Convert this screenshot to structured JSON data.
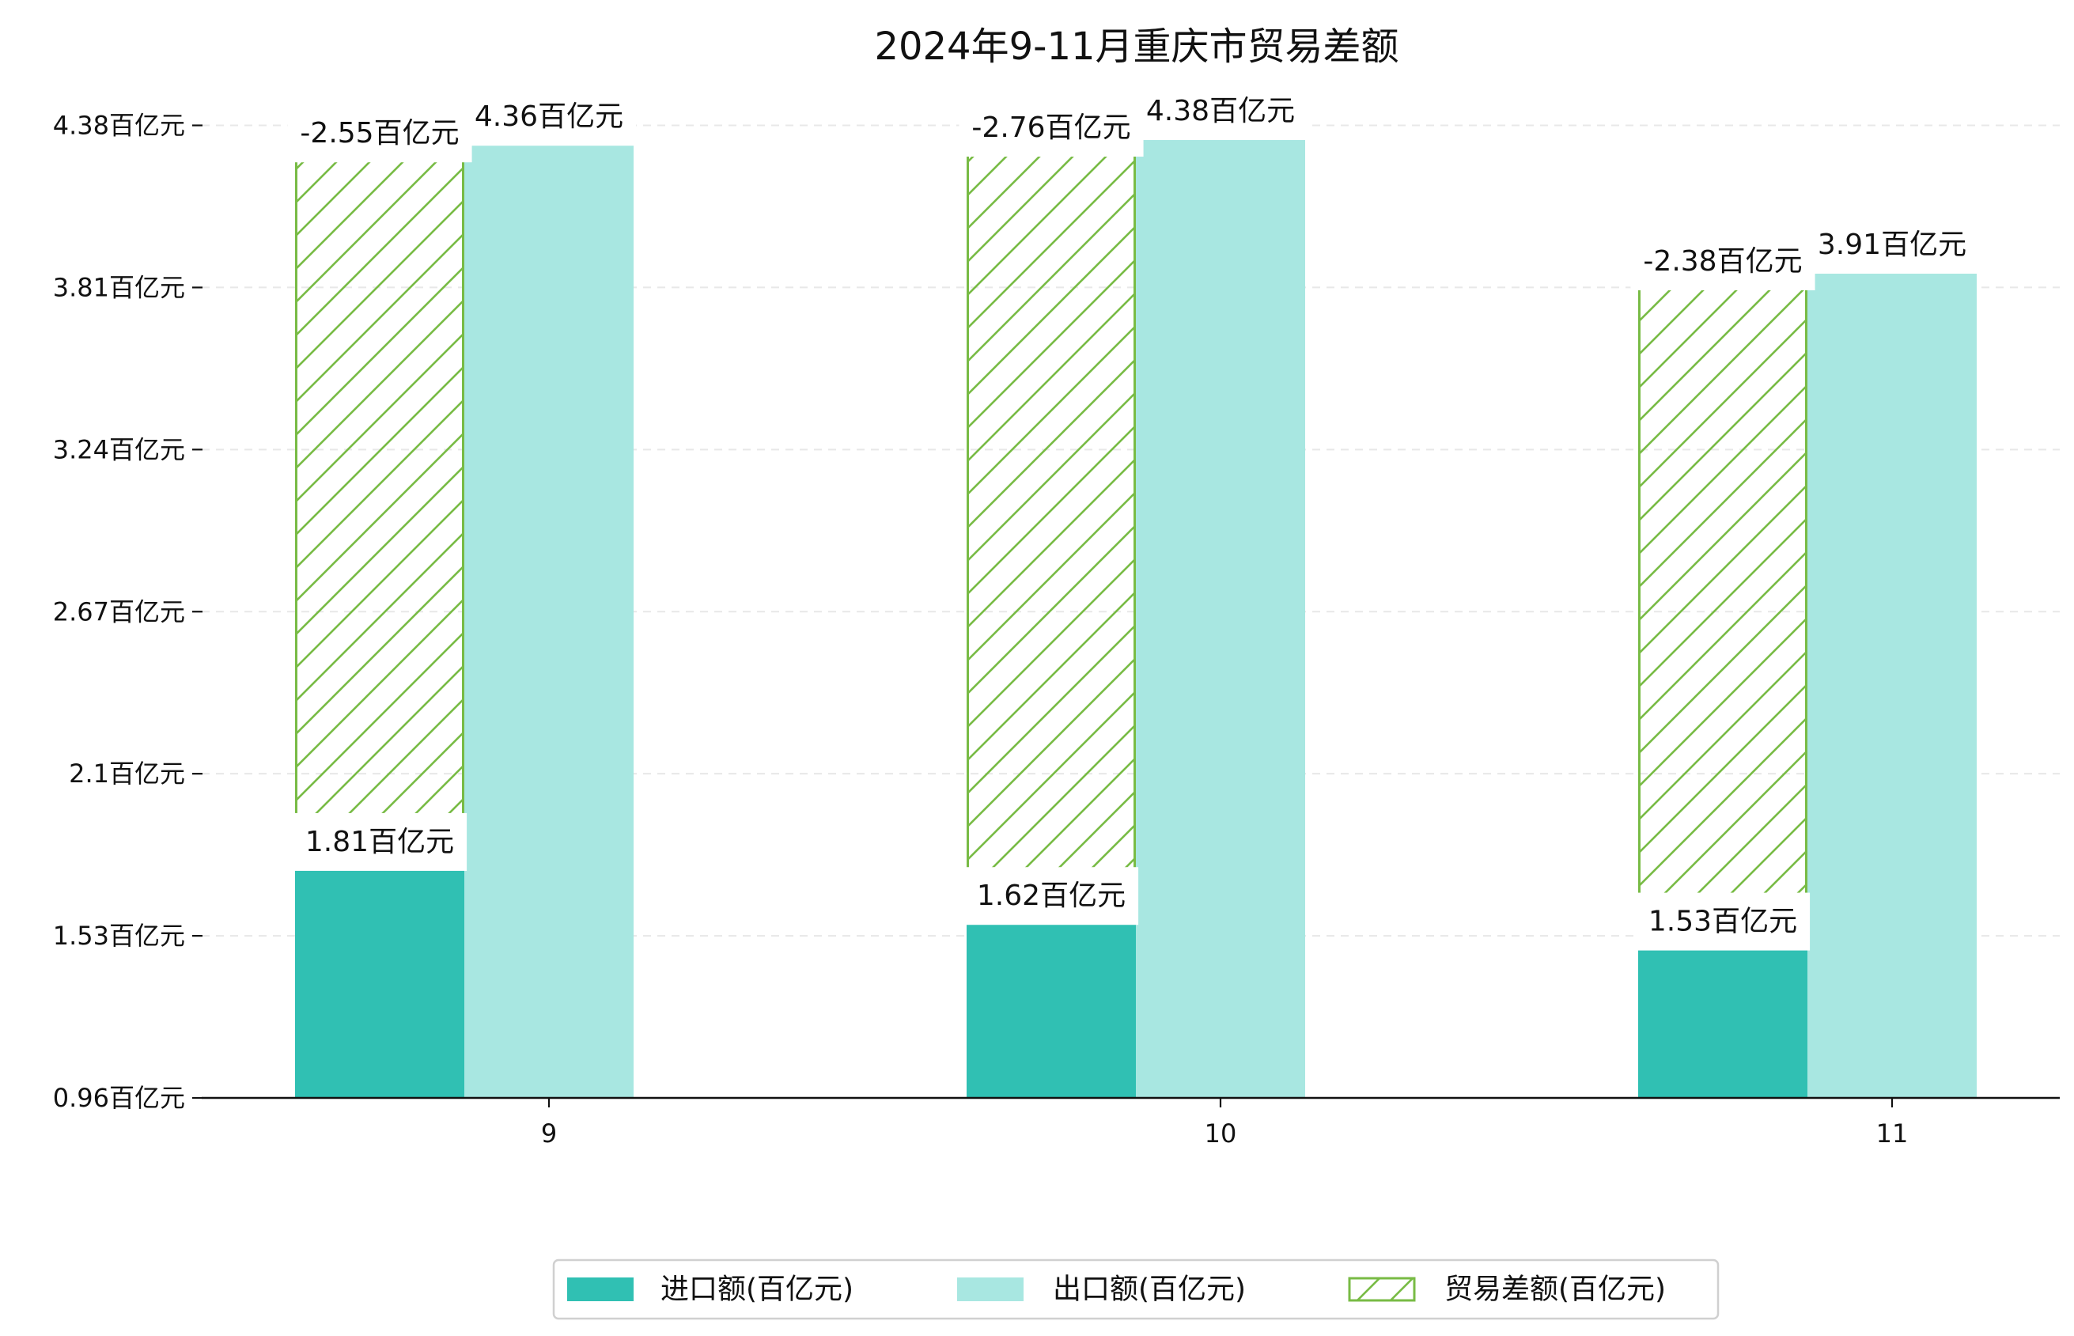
{
  "chart_data": {
    "type": "bar",
    "title": "2024年9-11月重庆市贸易差额",
    "xlabel": "",
    "ylabel": "",
    "categories": [
      "9",
      "10",
      "11"
    ],
    "series": [
      {
        "name": "进口额(百亿元)",
        "values": [
          1.81,
          1.62,
          1.53
        ],
        "labels": [
          "1.81百亿元",
          "1.62百亿元",
          "1.53百亿元"
        ],
        "color": "#30c0b3"
      },
      {
        "name": "出口额(百亿元)",
        "values": [
          4.36,
          4.38,
          3.91
        ],
        "labels": [
          "4.36百亿元",
          "4.38百亿元",
          "3.91百亿元"
        ],
        "color": "#a8e7e1"
      },
      {
        "name": "贸易差额(百亿元)",
        "values": [
          -2.55,
          -2.76,
          -2.38
        ],
        "labels": [
          "-2.55百亿元",
          "-2.76百亿元",
          "-2.38百亿元"
        ],
        "color": "#78bb45"
      }
    ],
    "ylim": [
      0.96,
      4.54
    ],
    "yticks": [
      0.96,
      1.53,
      2.1,
      2.67,
      3.24,
      3.81,
      4.38
    ],
    "ytick_labels": [
      "0.96百亿元",
      "1.53百亿元",
      "2.1百亿元",
      "2.67百亿元",
      "3.24百亿元",
      "3.81百亿元",
      "4.38百亿元"
    ],
    "grid": true,
    "legend_position": "bottom-center"
  }
}
